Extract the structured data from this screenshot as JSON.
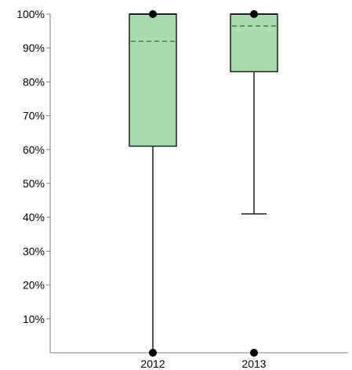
{
  "chart_data": {
    "type": "box",
    "categories": [
      "2012",
      "2013"
    ],
    "y_ticks": [
      "10%",
      "20%",
      "30%",
      "40%",
      "50%",
      "60%",
      "70%",
      "80%",
      "90%",
      "100%"
    ],
    "ylim": [
      0,
      100
    ],
    "y_unit": "%",
    "grid": false,
    "colors": {
      "box_fill": "#a8dbb0",
      "box_stroke": "#1f1f1f",
      "mean_line": "#2f5f36",
      "marker": "#000000",
      "axis": "#7f7f7f"
    },
    "boxes": [
      {
        "category": "2012",
        "min": 0,
        "q1": 61,
        "median": 100,
        "mean": 92,
        "q3": 100,
        "max": 100,
        "outliers": [
          0,
          100
        ]
      },
      {
        "category": "2013",
        "min": 41,
        "q1": 83,
        "median": 100,
        "mean": 96.5,
        "q3": 100,
        "max": 100,
        "outliers": [
          0,
          100
        ]
      }
    ]
  }
}
